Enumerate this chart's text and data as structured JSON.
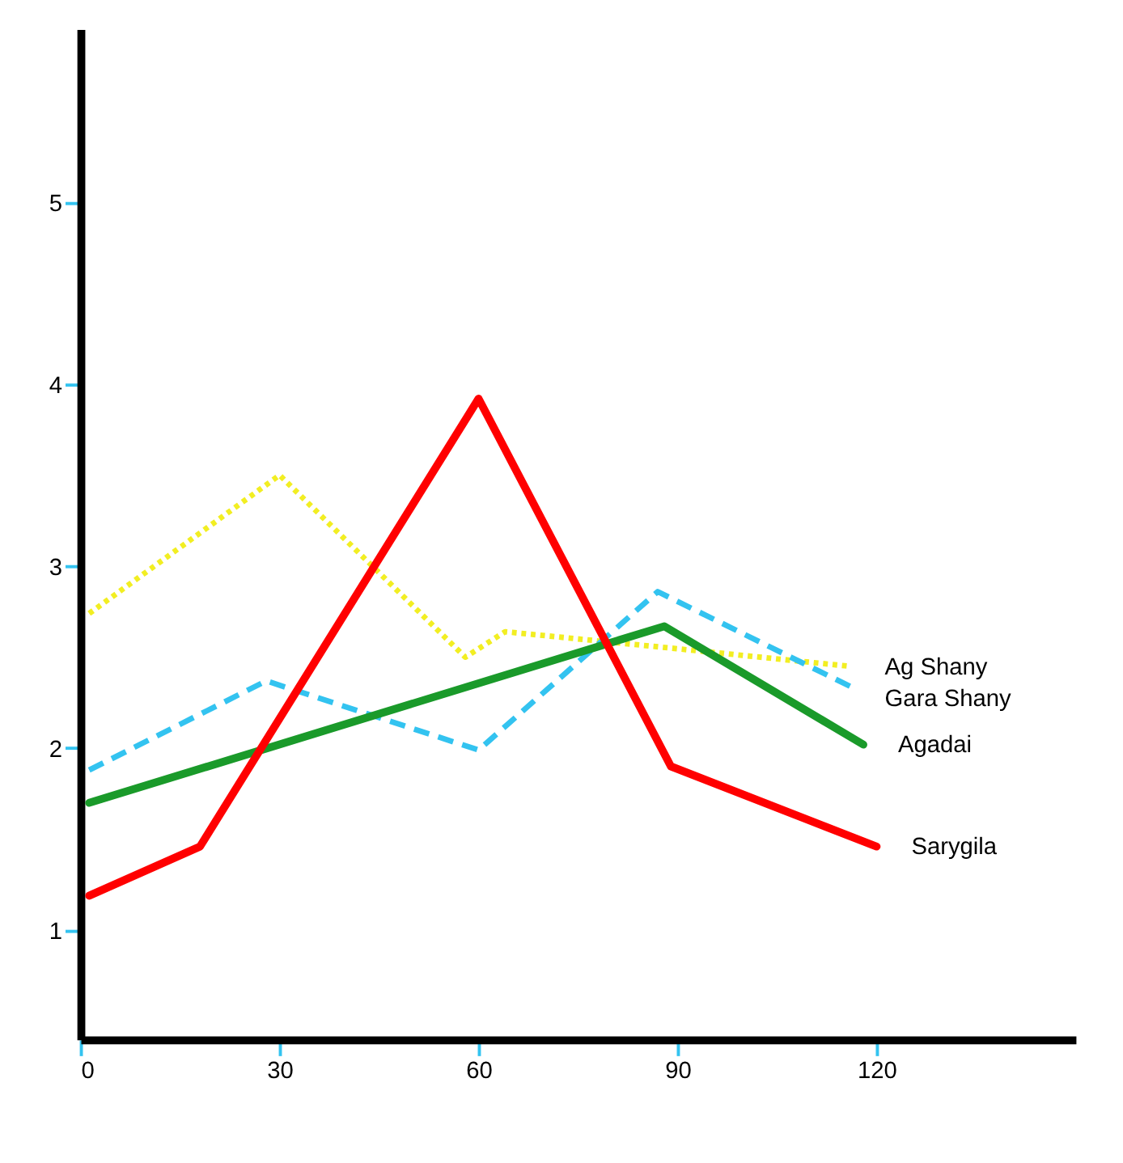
{
  "chart_data": {
    "type": "line",
    "xlim": [
      0,
      150
    ],
    "ylim": [
      0.4,
      5.95
    ],
    "xticks": [
      0,
      30,
      60,
      90,
      120
    ],
    "yticks": [
      1,
      2,
      3,
      4,
      5
    ],
    "grid": false,
    "marker": "none",
    "series": [
      {
        "name": "Ag Shany",
        "color": "#f2ee22",
        "line_style": "dotted",
        "x": [
          1.3,
          30,
          58,
          64,
          89,
          116
        ],
        "values": [
          2.74,
          3.5,
          2.5,
          2.64,
          2.55,
          2.45
        ]
      },
      {
        "name": "Gara Shany",
        "color": "#33c3f0",
        "line_style": "dashed",
        "x": [
          1.3,
          28,
          60,
          87,
          116
        ],
        "values": [
          1.88,
          2.37,
          1.99,
          2.86,
          2.34
        ]
      },
      {
        "name": "Agadai",
        "color": "#1a9a2a",
        "line_style": "solid",
        "x": [
          1.3,
          88,
          118
        ],
        "values": [
          1.7,
          2.67,
          2.02
        ]
      },
      {
        "name": "Sarygila",
        "color": "#ff0000",
        "line_style": "solid",
        "x": [
          1.3,
          18,
          60,
          89,
          120
        ],
        "values": [
          1.19,
          1.46,
          3.92,
          1.9,
          1.46
        ]
      }
    ]
  }
}
